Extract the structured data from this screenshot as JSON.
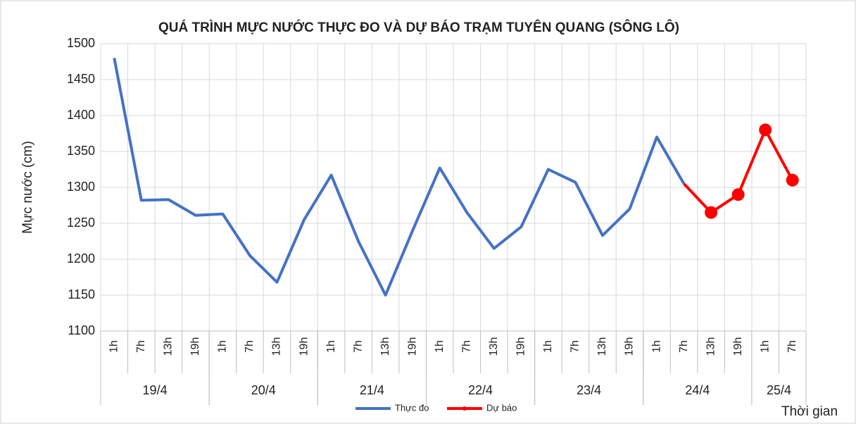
{
  "chart_data": {
    "type": "line",
    "title": "QUÁ TRÌNH MỰC NƯỚC THỰC ĐO VÀ DỰ BÁO TRẠM TUYÊN QUANG (SÔNG LÔ)",
    "y_label": "Mực nước (cm)",
    "x_label": "Thời gian",
    "groups": [
      {
        "label": "19/4",
        "categories": [
          "1h",
          "7h",
          "13h",
          "19h"
        ]
      },
      {
        "label": "20/4",
        "categories": [
          "1h",
          "7h",
          "13h",
          "19h"
        ]
      },
      {
        "label": "21/4",
        "categories": [
          "1h",
          "7h",
          "13h",
          "19h"
        ]
      },
      {
        "label": "22/4",
        "categories": [
          "1h",
          "7h",
          "13h",
          "19h"
        ]
      },
      {
        "label": "23/4",
        "categories": [
          "1h",
          "7h",
          "13h",
          "19h"
        ]
      },
      {
        "label": "24/4",
        "categories": [
          "1h",
          "7h",
          "13h",
          "19h"
        ]
      },
      {
        "label": "25/4",
        "categories": [
          "1h",
          "7h"
        ]
      }
    ],
    "series": [
      {
        "name": "Thực đo",
        "color": "#4472c4",
        "markers": false,
        "values": [
          1480,
          1282,
          1283,
          1261,
          1263,
          1205,
          1168,
          1255,
          1317,
          1225,
          1150,
          1240,
          1327,
          1265,
          1215,
          1245,
          1325,
          1307,
          1233,
          1270,
          1370,
          1305,
          null,
          null,
          null,
          null
        ]
      },
      {
        "name": "Dự báo",
        "color": "#ff0000",
        "markers": true,
        "values": [
          null,
          null,
          null,
          null,
          null,
          null,
          null,
          null,
          null,
          null,
          null,
          null,
          null,
          null,
          null,
          null,
          null,
          null,
          null,
          null,
          null,
          1305,
          1265,
          1290,
          1380,
          1310
        ]
      }
    ],
    "ylim": [
      1100,
      1500
    ],
    "yticks": [
      1100,
      1150,
      1200,
      1250,
      1300,
      1350,
      1400,
      1450,
      1500
    ],
    "grid": true,
    "legend": "bottom"
  }
}
